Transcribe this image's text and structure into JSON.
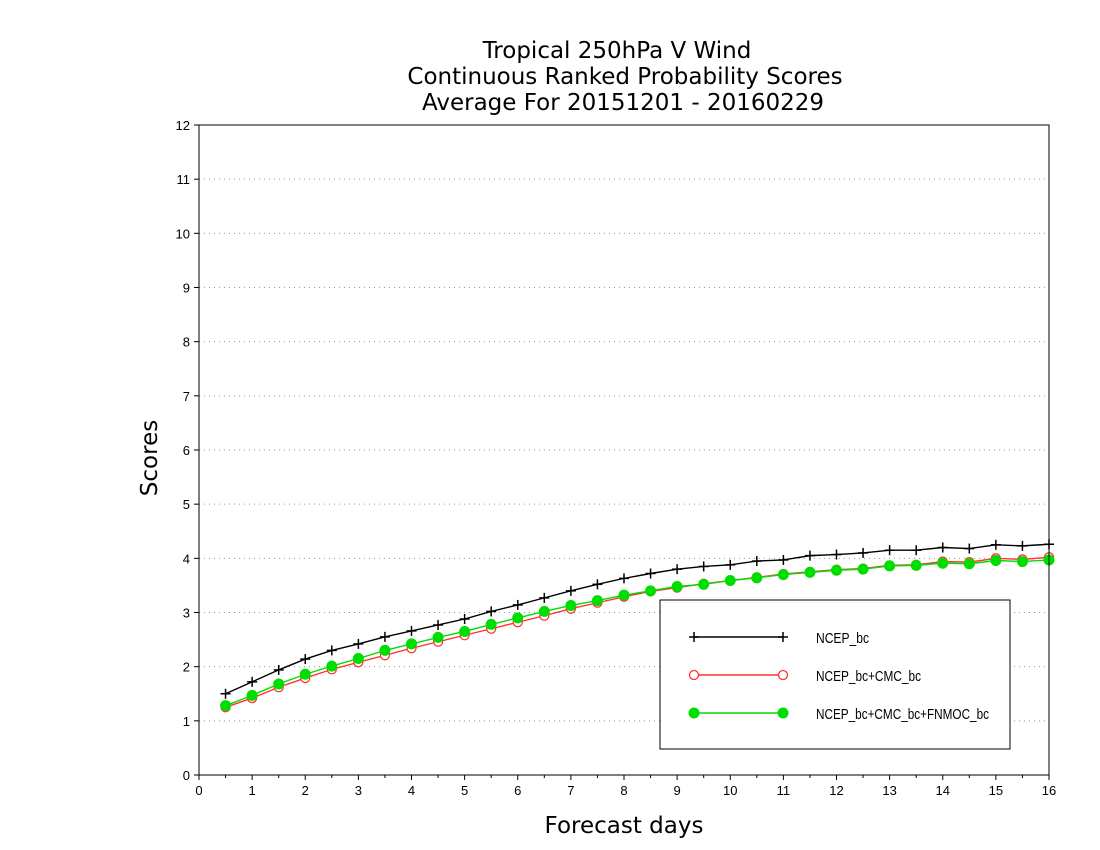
{
  "chart_data": {
    "type": "line",
    "title": [
      "Tropical 250hPa V Wind",
      "Continuous Ranked Probability Scores",
      "Average For 20151201 - 20160229"
    ],
    "xlabel": "Forecast days",
    "ylabel": "Scores",
    "xlim": [
      0,
      16
    ],
    "ylim": [
      0,
      12
    ],
    "x_ticks": [
      "0",
      "1",
      "2",
      "3",
      "4",
      "5",
      "6",
      "7",
      "8",
      "9",
      "10",
      "11",
      "12",
      "13",
      "14",
      "15",
      "16"
    ],
    "y_ticks": [
      "0",
      "1",
      "2",
      "3",
      "4",
      "5",
      "6",
      "7",
      "8",
      "9",
      "10",
      "11",
      "12"
    ],
    "grid": "horizontal dotted",
    "legend_position": "bottom-right",
    "x": [
      0.5,
      1,
      1.5,
      2,
      2.5,
      3,
      3.5,
      4,
      4.5,
      5,
      5.5,
      6,
      6.5,
      7,
      7.5,
      8,
      8.5,
      9,
      9.5,
      10,
      10.5,
      11,
      11.5,
      12,
      12.5,
      13,
      13.5,
      14,
      14.5,
      15,
      15.5,
      16
    ],
    "series": [
      {
        "name": "NCEP_bc",
        "color": "#000000",
        "marker": "plus",
        "values": [
          1.5,
          1.72,
          1.94,
          2.14,
          2.3,
          2.42,
          2.55,
          2.66,
          2.77,
          2.88,
          3.02,
          3.14,
          3.27,
          3.4,
          3.52,
          3.63,
          3.72,
          3.8,
          3.85,
          3.88,
          3.95,
          3.97,
          4.05,
          4.07,
          4.1,
          4.15,
          4.15,
          4.2,
          4.18,
          4.25,
          4.23,
          4.26
        ]
      },
      {
        "name": "NCEP_bc+CMC_bc",
        "color": "#ff3333",
        "marker": "open-circle",
        "values": [
          1.25,
          1.42,
          1.62,
          1.79,
          1.95,
          2.08,
          2.21,
          2.34,
          2.46,
          2.58,
          2.7,
          2.82,
          2.94,
          3.07,
          3.18,
          3.29,
          3.39,
          3.46,
          3.53,
          3.59,
          3.65,
          3.71,
          3.75,
          3.79,
          3.81,
          3.87,
          3.88,
          3.94,
          3.93,
          4.0,
          3.98,
          4.02
        ]
      },
      {
        "name": "NCEP_bc+CMC_bc+FNMOC_bc",
        "color": "#00dd00",
        "marker": "filled-circle",
        "values": [
          1.28,
          1.47,
          1.68,
          1.86,
          2.01,
          2.15,
          2.3,
          2.42,
          2.54,
          2.65,
          2.78,
          2.9,
          3.02,
          3.13,
          3.22,
          3.32,
          3.4,
          3.48,
          3.52,
          3.59,
          3.64,
          3.7,
          3.74,
          3.78,
          3.8,
          3.86,
          3.87,
          3.91,
          3.9,
          3.96,
          3.94,
          3.97
        ]
      }
    ]
  }
}
